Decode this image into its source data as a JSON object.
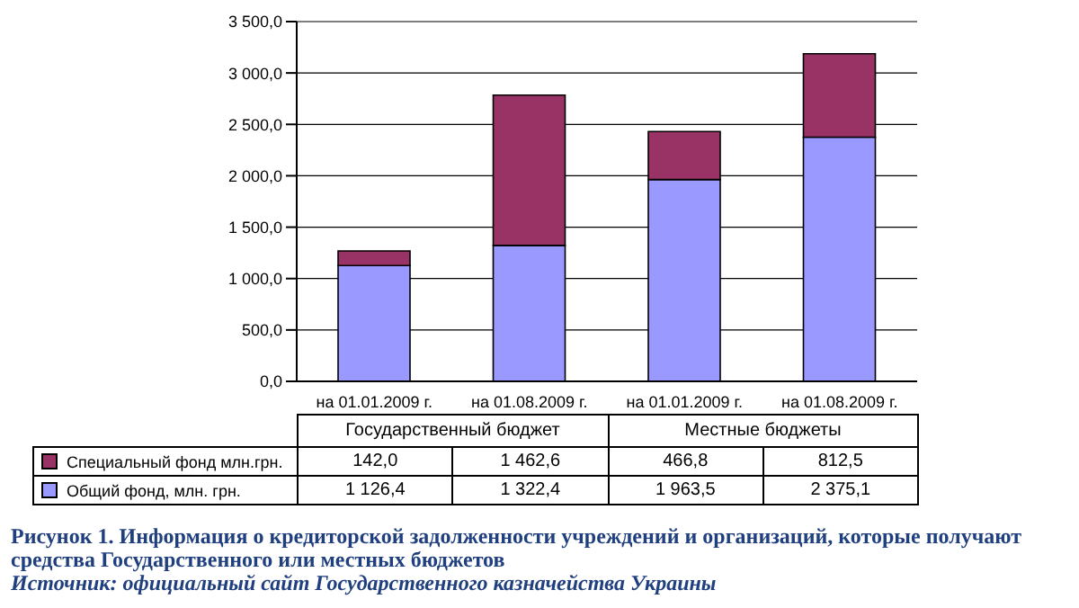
{
  "chart_data": {
    "type": "bar",
    "title": "Рисунок 1. Информация о кредиторской задолженности учреждений и организаций, которые получают средства Государственного или местных бюджетов",
    "categories": [
      "на 01.01.2009 г.",
      "на 01.08.2009 г.",
      "на 01.01.2009 г.",
      "на 01.08.2009 г."
    ],
    "series": [
      {
        "name": "Общий фонд, млн. грн.",
        "color": "#9999ff",
        "values": [
          1126.4,
          1322.4,
          1963.5,
          2375.1
        ],
        "value_labels": [
          "1 126,4",
          "1 322,4",
          "1 963,5",
          "2 375,1"
        ]
      },
      {
        "name": "Специальный фонд млн.грн.",
        "color": "#993366",
        "values": [
          142.0,
          1462.6,
          466.8,
          812.5
        ],
        "value_labels": [
          "142,0",
          "1 462,6",
          "466,8",
          "812,5"
        ]
      }
    ],
    "stacked": true,
    "ylim": [
      0,
      3500
    ],
    "yticks": [
      {
        "value": 0,
        "label": "0,0"
      },
      {
        "value": 500,
        "label": "500,0"
      },
      {
        "value": 1000,
        "label": "1 000,0"
      },
      {
        "value": 1500,
        "label": "1 500,0"
      },
      {
        "value": 2000,
        "label": "2 000,0"
      },
      {
        "value": 2500,
        "label": "2 500,0"
      },
      {
        "value": 3000,
        "label": "3 000,0"
      },
      {
        "value": 3500,
        "label": "3 500,0"
      }
    ],
    "grid": "y",
    "legend": "bottom left",
    "annotations": [
      "Государственный бюджет",
      "Местные бюджеты",
      "Источник: официальный сайт Государственного казначейства Украины"
    ]
  }
}
